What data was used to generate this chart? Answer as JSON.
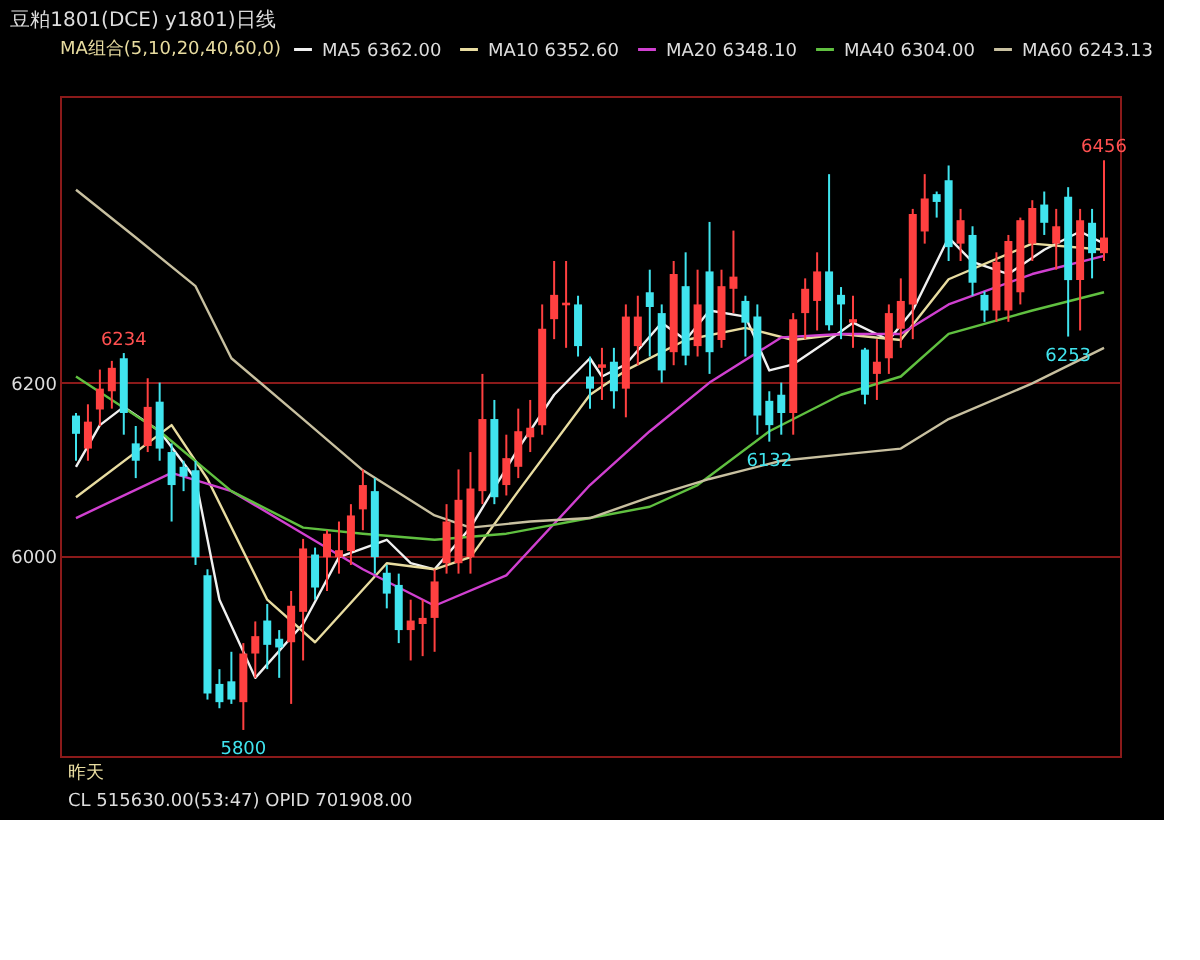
{
  "chart_data": {
    "type": "candlestick",
    "title": "豆粕1801(DCE) y1801)日线",
    "legend_title": "MA组合(5,10,20,40,60,0)",
    "legend": "top",
    "grid": "y",
    "tick_labels": "y",
    "ylim": [
      5770,
      6530
    ],
    "yticks": [
      6000,
      6200
    ],
    "categories": [
      null,
      null,
      null,
      null,
      null,
      null,
      null,
      null,
      null,
      null,
      null,
      null,
      null,
      null,
      null,
      null,
      null,
      null,
      null,
      null,
      null,
      null,
      null,
      null,
      null,
      null,
      null,
      null,
      null,
      null,
      null,
      null,
      null,
      null,
      null,
      null,
      null,
      null,
      null,
      null,
      null,
      null,
      null,
      null,
      null,
      null,
      null,
      null,
      null,
      null,
      null,
      null,
      null,
      null,
      null,
      null,
      null,
      null,
      null,
      null,
      null,
      null,
      null,
      null,
      null,
      null,
      null,
      null,
      null,
      null,
      null,
      null,
      null,
      null,
      null,
      null,
      null,
      null,
      null,
      null,
      null,
      null,
      null,
      null,
      null,
      null,
      null
    ],
    "ohlc": [
      [
        6162,
        6165,
        6110,
        6141
      ],
      [
        6124,
        6175,
        6110,
        6155
      ],
      [
        6169,
        6215,
        6150,
        6193
      ],
      [
        6190,
        6225,
        6170,
        6217
      ],
      [
        6228,
        6234,
        6140,
        6165
      ],
      [
        6130,
        6150,
        6090,
        6110
      ],
      [
        6127,
        6205,
        6120,
        6172
      ],
      [
        6178,
        6200,
        6110,
        6124
      ],
      [
        6120,
        6130,
        6040,
        6082
      ],
      [
        6103,
        6110,
        6075,
        6092
      ],
      [
        6099,
        6110,
        5990,
        5999
      ],
      [
        5978,
        5985,
        5835,
        5842
      ],
      [
        5853,
        5870,
        5825,
        5832
      ],
      [
        5856,
        5890,
        5830,
        5835
      ],
      [
        5832,
        5900,
        5800,
        5888
      ],
      [
        5888,
        5925,
        5860,
        5908
      ],
      [
        5926,
        5945,
        5870,
        5898
      ],
      [
        5905,
        5915,
        5860,
        5895
      ],
      [
        5901,
        5960,
        5830,
        5943
      ],
      [
        5936,
        6020,
        5880,
        6009
      ],
      [
        6002,
        6010,
        5950,
        5964
      ],
      [
        5999,
        6030,
        5960,
        6026
      ],
      [
        5999,
        6040,
        5980,
        6007
      ],
      [
        6006,
        6060,
        5990,
        6047
      ],
      [
        6054,
        6100,
        6030,
        6082
      ],
      [
        6075,
        6090,
        5980,
        5999
      ],
      [
        5981,
        5990,
        5940,
        5957
      ],
      [
        5967,
        5980,
        5900,
        5915
      ],
      [
        5915,
        5950,
        5880,
        5926
      ],
      [
        5922,
        5950,
        5885,
        5929
      ],
      [
        5929,
        5985,
        5890,
        5971
      ],
      [
        5992,
        6060,
        5980,
        6040
      ],
      [
        5992,
        6100,
        5980,
        6065
      ],
      [
        5999,
        6120,
        5980,
        6078
      ],
      [
        6075,
        6210,
        6060,
        6158
      ],
      [
        6158,
        6180,
        6060,
        6068
      ],
      [
        6082,
        6140,
        6070,
        6113
      ],
      [
        6103,
        6170,
        6090,
        6144
      ],
      [
        6137,
        6180,
        6120,
        6148
      ],
      [
        6151,
        6290,
        6140,
        6262
      ],
      [
        6273,
        6340,
        6250,
        6301
      ],
      [
        6289,
        6340,
        6240,
        6292
      ],
      [
        6290,
        6300,
        6230,
        6242
      ],
      [
        6207,
        6230,
        6170,
        6193
      ],
      [
        6217,
        6240,
        6180,
        6221
      ],
      [
        6224,
        6240,
        6170,
        6190
      ],
      [
        6193,
        6290,
        6160,
        6276
      ],
      [
        6242,
        6300,
        6220,
        6276
      ],
      [
        6304,
        6330,
        6230,
        6287
      ],
      [
        6280,
        6290,
        6200,
        6214
      ],
      [
        6235,
        6340,
        6220,
        6325
      ],
      [
        6311,
        6350,
        6220,
        6231
      ],
      [
        6242,
        6330,
        6230,
        6290
      ],
      [
        6328,
        6385,
        6210,
        6235
      ],
      [
        6249,
        6330,
        6240,
        6311
      ],
      [
        6308,
        6375,
        6280,
        6322
      ],
      [
        6294,
        6300,
        6230,
        6269
      ],
      [
        6276,
        6290,
        6140,
        6162
      ],
      [
        6179,
        6190,
        6132,
        6151
      ],
      [
        6186,
        6200,
        6140,
        6165
      ],
      [
        6165,
        6280,
        6140,
        6273
      ],
      [
        6280,
        6320,
        6250,
        6308
      ],
      [
        6294,
        6350,
        6260,
        6328
      ],
      [
        6328,
        6440,
        6260,
        6266
      ],
      [
        6301,
        6310,
        6250,
        6290
      ],
      [
        6269,
        6300,
        6240,
        6273
      ],
      [
        6238,
        6240,
        6175,
        6186
      ],
      [
        6210,
        6250,
        6180,
        6224
      ],
      [
        6228,
        6290,
        6210,
        6280
      ],
      [
        6262,
        6320,
        6240,
        6294
      ],
      [
        6290,
        6400,
        6250,
        6394
      ],
      [
        6374,
        6440,
        6360,
        6412
      ],
      [
        6417,
        6420,
        6390,
        6408
      ],
      [
        6433,
        6450,
        6340,
        6356
      ],
      [
        6360,
        6400,
        6340,
        6387
      ],
      [
        6370,
        6380,
        6300,
        6315
      ],
      [
        6301,
        6305,
        6270,
        6283
      ],
      [
        6283,
        6350,
        6270,
        6339
      ],
      [
        6283,
        6370,
        6270,
        6363
      ],
      [
        6304,
        6390,
        6290,
        6387
      ],
      [
        6360,
        6410,
        6340,
        6401
      ],
      [
        6405,
        6420,
        6370,
        6384
      ],
      [
        6360,
        6400,
        6330,
        6380
      ],
      [
        6414,
        6425,
        6253,
        6318
      ],
      [
        6318,
        6400,
        6260,
        6387
      ],
      [
        6384,
        6400,
        6320,
        6349
      ],
      [
        6349,
        6456,
        6340,
        6367
      ]
    ],
    "colors": [
      "#40e4ee",
      "#ff4040",
      "#ff4040",
      "#ff4040",
      "#40e4ee",
      "#40e4ee",
      "#ff4040",
      "#40e4ee",
      "#40e4ee",
      "#40e4ee",
      "#40e4ee",
      "#40e4ee",
      "#40e4ee",
      "#40e4ee",
      "#ff4040",
      "#ff4040",
      "#40e4ee",
      "#40e4ee",
      "#ff4040",
      "#ff4040",
      "#40e4ee",
      "#ff4040",
      "#ff4040",
      "#ff4040",
      "#ff4040",
      "#40e4ee",
      "#40e4ee",
      "#40e4ee",
      "#ff4040",
      "#ff4040",
      "#ff4040",
      "#ff4040",
      "#ff4040",
      "#ff4040",
      "#ff4040",
      "#40e4ee",
      "#ff4040",
      "#ff4040",
      "#ff4040",
      "#ff4040",
      "#ff4040",
      "#ff4040",
      "#40e4ee",
      "#40e4ee",
      "#ff4040",
      "#40e4ee",
      "#ff4040",
      "#ff4040",
      "#40e4ee",
      "#40e4ee",
      "#ff4040",
      "#40e4ee",
      "#ff4040",
      "#40e4ee",
      "#ff4040",
      "#ff4040",
      "#40e4ee",
      "#40e4ee",
      "#40e4ee",
      "#40e4ee",
      "#ff4040",
      "#ff4040",
      "#ff4040",
      "#40e4ee",
      "#40e4ee",
      "#ff4040",
      "#40e4ee",
      "#ff4040",
      "#ff4040",
      "#ff4040",
      "#ff4040",
      "#ff4040",
      "#40e4ee",
      "#40e4ee",
      "#ff4040",
      "#40e4ee",
      "#40e4ee",
      "#ff4040",
      "#ff4040",
      "#ff4040",
      "#ff4040",
      "#40e4ee",
      "#ff4040",
      "#40e4ee",
      "#ff4040",
      "#40e4ee",
      "#ff4040"
    ],
    "series": [
      {
        "type": "line",
        "name": "MA5 6362.00",
        "color": "#f0f0f0",
        "values": [
          6103,
          null,
          6151,
          null,
          6172,
          null,
          null,
          6144,
          null,
          null,
          6089,
          null,
          5950,
          null,
          null,
          5860,
          null,
          null,
          null,
          5922,
          null,
          null,
          5999,
          null,
          null,
          null,
          6019,
          null,
          5992,
          null,
          5985,
          null,
          null,
          6033,
          null,
          null,
          null,
          6124,
          null,
          null,
          6186,
          null,
          null,
          6228,
          6207,
          null,
          6221,
          null,
          null,
          6269,
          null,
          6249,
          null,
          6283,
          null,
          null,
          6276,
          null,
          6214,
          null,
          6221,
          null,
          null,
          6249,
          null,
          6269,
          null,
          null,
          6249,
          null,
          6283,
          null,
          null,
          6367,
          null,
          6339,
          null,
          null,
          6325,
          null,
          null,
          6353,
          null,
          null,
          6374,
          null,
          6360
        ]
      },
      {
        "type": "line",
        "name": "MA10 6352.60",
        "color": "#e8dca0",
        "values": [
          6068,
          null,
          null,
          null,
          null,
          null,
          null,
          null,
          6151,
          null,
          null,
          6089,
          null,
          null,
          null,
          null,
          5950,
          null,
          null,
          null,
          5901,
          null,
          null,
          null,
          null,
          null,
          5992,
          null,
          null,
          null,
          5985,
          null,
          null,
          5999,
          null,
          null,
          null,
          6075,
          null,
          null,
          null,
          null,
          null,
          6186,
          null,
          null,
          6214,
          null,
          null,
          null,
          null,
          6249,
          null,
          null,
          null,
          null,
          6263,
          null,
          null,
          null,
          6249,
          null,
          null,
          null,
          6256,
          null,
          null,
          null,
          null,
          6249,
          null,
          null,
          null,
          6319,
          null,
          null,
          null,
          null,
          null,
          null,
          6360,
          null,
          null,
          null,
          null,
          null,
          6353
        ]
      },
      {
        "type": "line",
        "name": "MA20 6348.10",
        "color": "#d040d0",
        "values": [
          6044,
          null,
          null,
          null,
          null,
          null,
          null,
          null,
          6096,
          null,
          null,
          null,
          null,
          6075,
          null,
          null,
          null,
          null,
          null,
          6026,
          null,
          null,
          null,
          null,
          5985,
          null,
          null,
          null,
          null,
          null,
          5943,
          null,
          null,
          null,
          null,
          null,
          5978,
          null,
          null,
          null,
          null,
          null,
          null,
          6082,
          null,
          null,
          null,
          null,
          6144,
          null,
          null,
          null,
          null,
          6200,
          null,
          null,
          null,
          null,
          null,
          6252,
          null,
          null,
          null,
          null,
          6256,
          null,
          null,
          null,
          null,
          6256,
          null,
          null,
          null,
          6290,
          null,
          null,
          null,
          null,
          null,
          null,
          6325,
          null,
          null,
          null,
          null,
          null,
          6346
        ]
      },
      {
        "type": "line",
        "name": "MA40 6304.00",
        "color": "#60c040",
        "values": [
          6207,
          null,
          null,
          null,
          null,
          null,
          null,
          6144,
          null,
          null,
          null,
          null,
          null,
          6075,
          null,
          null,
          null,
          null,
          null,
          6033,
          null,
          null,
          null,
          null,
          6026,
          null,
          null,
          null,
          null,
          null,
          6019,
          null,
          null,
          null,
          null,
          null,
          6026,
          null,
          null,
          null,
          null,
          null,
          null,
          6044,
          null,
          null,
          null,
          null,
          6057,
          null,
          null,
          null,
          6082,
          null,
          null,
          null,
          null,
          null,
          6144,
          null,
          null,
          null,
          null,
          null,
          6186,
          null,
          null,
          null,
          null,
          6207,
          null,
          null,
          null,
          6256,
          null,
          null,
          null,
          null,
          null,
          null,
          6283,
          null,
          null,
          null,
          null,
          null,
          6304
        ]
      },
      {
        "type": "line",
        "name": "MA60 6243.13",
        "color": "#c8c0a0",
        "values": [
          6422,
          null,
          null,
          null,
          null,
          6367,
          null,
          null,
          null,
          null,
          6311,
          null,
          null,
          6228,
          null,
          null,
          null,
          null,
          null,
          6158,
          null,
          null,
          null,
          null,
          6099,
          null,
          null,
          null,
          null,
          null,
          6047,
          null,
          null,
          6033,
          null,
          null,
          null,
          null,
          6040,
          null,
          null,
          null,
          null,
          6044,
          null,
          null,
          null,
          null,
          6068,
          null,
          null,
          null,
          null,
          6089,
          null,
          null,
          null,
          null,
          null,
          6110,
          null,
          null,
          null,
          null,
          6117,
          null,
          null,
          null,
          null,
          6124,
          null,
          null,
          null,
          6158,
          null,
          null,
          null,
          null,
          null,
          null,
          6199,
          null,
          null,
          null,
          null,
          null,
          6240
        ]
      }
    ],
    "annotations": [
      {
        "text": "6234",
        "y": 6234
      },
      {
        "text": "5800",
        "y": 5800
      },
      {
        "text": "6132",
        "y": 6132
      },
      {
        "text": "6253",
        "y": 6253
      },
      {
        "text": "6456",
        "y": 6456
      },
      "昨天",
      "CL 515630.00(53:47)   OPID 701908.00"
    ]
  }
}
